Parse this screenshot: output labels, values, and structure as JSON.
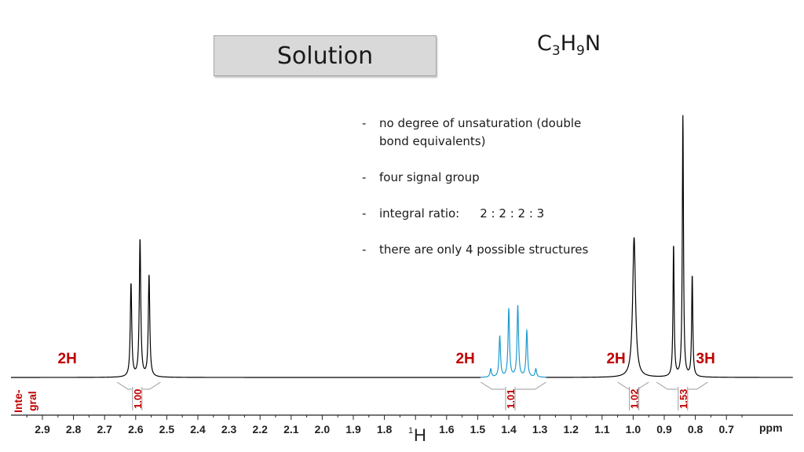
{
  "slide": {
    "title": "Solution",
    "formula": {
      "c": "C",
      "c_n": "3",
      "h": "H",
      "h_n": "9",
      "n": "N"
    },
    "notes": [
      "no degree of unsaturation (double bond equivalents)",
      "four signal group"
    ],
    "ratio_note": {
      "label": "integral ratio:",
      "value": "2 : 2 : 2 : 3"
    },
    "last_note": "there are only 4 possible structures"
  },
  "chart_data": {
    "type": "line",
    "title": "",
    "xlabel": "ppm",
    "x_unit": "ppm",
    "nucleus": {
      "mass": "1",
      "symbol": "H"
    },
    "xlim": [
      2.95,
      0.65
    ],
    "x_reversed": true,
    "x_ticks": [
      "2.9",
      "2.8",
      "2.7",
      "2.6",
      "2.5",
      "2.4",
      "2.3",
      "2.2",
      "2.1",
      "2.0",
      "1.9",
      "1.8",
      "1.6",
      "1.5",
      "1.4",
      "1.3",
      "1.2",
      "1.1",
      "1.0",
      "0.9",
      "0.8",
      "0.7"
    ],
    "integral_axis_label": [
      "Inte-",
      "gral"
    ],
    "series": [
      {
        "group": "black",
        "color": "#000000",
        "peaks": [
          {
            "ppm": 2.615,
            "height": 0.34,
            "width": 0.0028
          },
          {
            "ppm": 2.586,
            "height": 0.5,
            "width": 0.0028
          },
          {
            "ppm": 2.557,
            "height": 0.37,
            "width": 0.0028
          },
          {
            "ppm": 0.997,
            "height": 0.51,
            "width": 0.0055
          },
          {
            "ppm": 0.87,
            "height": 0.48,
            "width": 0.0022
          },
          {
            "ppm": 0.84,
            "height": 0.95,
            "width": 0.0022
          },
          {
            "ppm": 0.81,
            "height": 0.37,
            "width": 0.0022
          }
        ]
      },
      {
        "group": "blue",
        "color": "#1f9bd1",
        "peaks": [
          {
            "ppm": 1.458,
            "height": 0.03,
            "width": 0.0028
          },
          {
            "ppm": 1.429,
            "height": 0.15,
            "width": 0.0028
          },
          {
            "ppm": 1.4,
            "height": 0.25,
            "width": 0.0028
          },
          {
            "ppm": 1.371,
            "height": 0.26,
            "width": 0.0028
          },
          {
            "ppm": 1.342,
            "height": 0.17,
            "width": 0.0028
          },
          {
            "ppm": 1.313,
            "height": 0.03,
            "width": 0.0028
          }
        ]
      }
    ],
    "multiplicity_labels": [
      {
        "text": "2H",
        "ppm": 2.82
      },
      {
        "text": "2H",
        "ppm": 1.54
      },
      {
        "text": "2H",
        "ppm": 1.055
      },
      {
        "text": "3H",
        "ppm": 0.767
      }
    ],
    "integrals": [
      {
        "value": "1.00",
        "from": 2.66,
        "to": 2.52,
        "center": 2.595
      },
      {
        "value": "1.01",
        "from": 1.49,
        "to": 1.28,
        "center": 1.395
      },
      {
        "value": "1.02",
        "from": 1.05,
        "to": 0.95,
        "center": 0.997
      },
      {
        "value": "1.53",
        "from": 0.925,
        "to": 0.76,
        "center": 0.84
      }
    ],
    "colors": {
      "spectrum": "#000000",
      "highlight": "#1f9bd1",
      "labels": "#c00000"
    }
  }
}
